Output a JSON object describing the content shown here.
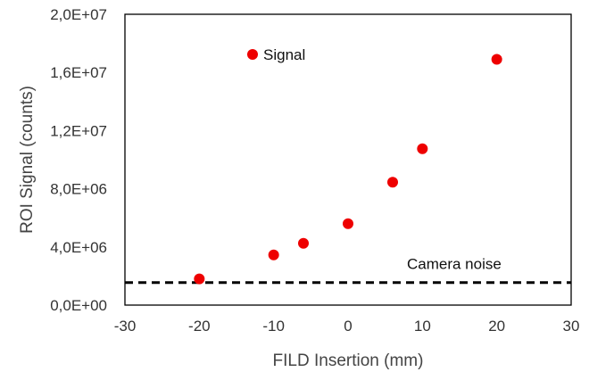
{
  "chart_data": {
    "type": "scatter",
    "title": "",
    "xlabel": "FILD Insertion (mm)",
    "ylabel": "ROI Signal (counts)",
    "xlim": [
      -30,
      30
    ],
    "ylim": [
      0,
      20000000
    ],
    "x_ticks": [
      -30,
      -20,
      -10,
      0,
      10,
      20,
      30
    ],
    "x_tick_labels": [
      "-30",
      "-20",
      "-10",
      "0",
      "10",
      "20",
      "30"
    ],
    "y_ticks": [
      0,
      4000000,
      8000000,
      12000000,
      16000000,
      20000000
    ],
    "y_tick_labels": [
      "0,0E+00",
      "4,0E+06",
      "8,0E+06",
      "1,2E+07",
      "1,6E+07",
      "2,0E+07"
    ],
    "grid": false,
    "legend_position": "top-left",
    "series": [
      {
        "name": "Signal",
        "color": "#ee0000",
        "x": [
          -20,
          -10,
          -6,
          0,
          6,
          10,
          20
        ],
        "y": [
          1800000,
          3450000,
          4250000,
          5600000,
          8450000,
          10750000,
          16900000
        ]
      }
    ],
    "reference_lines": [
      {
        "label": "Camera noise",
        "y": 1550000,
        "style": "dashed",
        "color": "#000000"
      }
    ]
  }
}
